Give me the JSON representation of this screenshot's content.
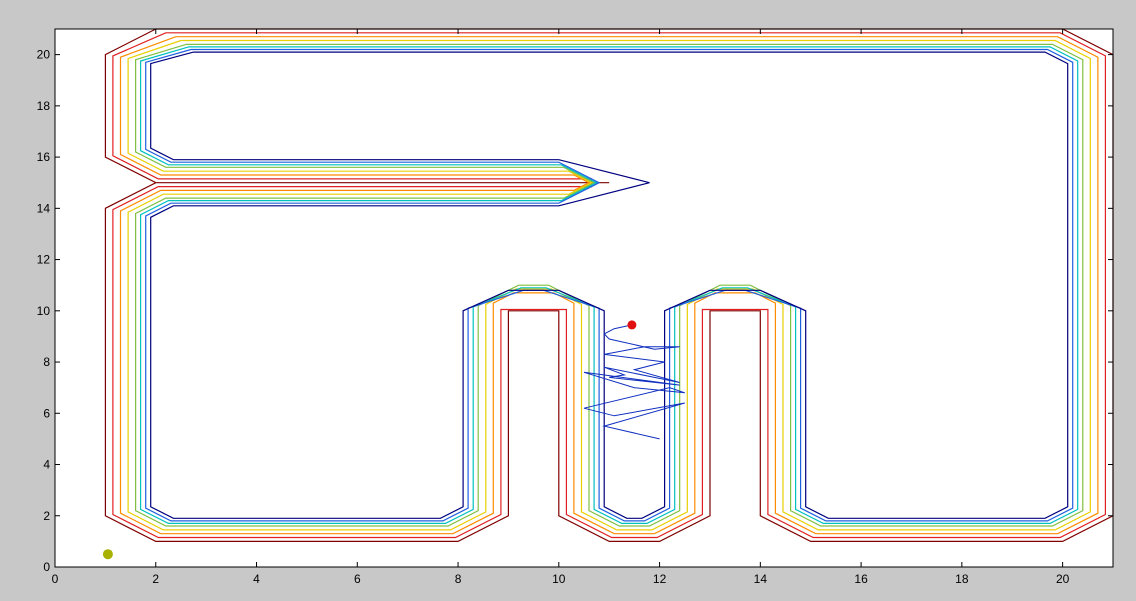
{
  "chart_data": {
    "type": "line",
    "title": "",
    "xlabel": "",
    "ylabel": "",
    "xlim": [
      0,
      21
    ],
    "ylim": [
      0,
      21
    ],
    "grid": false,
    "legend": "none",
    "xticks": [
      0,
      2,
      4,
      6,
      8,
      10,
      12,
      14,
      16,
      18,
      20
    ],
    "yticks": [
      0,
      2,
      4,
      6,
      8,
      10,
      12,
      14,
      16,
      18,
      20
    ],
    "xtick_labels": [
      "0",
      "2",
      "4",
      "6",
      "8",
      "10",
      "12",
      "14",
      "16",
      "18",
      "20"
    ],
    "ytick_labels": [
      "0",
      "2",
      "4",
      "6",
      "8",
      "10",
      "12",
      "14",
      "16",
      "18",
      "20"
    ],
    "contour_levels": [
      {
        "color": "#800000",
        "points": [
          [
            2,
            21
          ],
          [
            20,
            21
          ],
          [
            21,
            20
          ],
          [
            21,
            2
          ],
          [
            20,
            1
          ],
          [
            15,
            1
          ],
          [
            14,
            2
          ],
          [
            14,
            10
          ],
          [
            13,
            10
          ],
          [
            13,
            2
          ],
          [
            12,
            1
          ],
          [
            11,
            1
          ],
          [
            10,
            2
          ],
          [
            10,
            10
          ],
          [
            9,
            10
          ],
          [
            9,
            2
          ],
          [
            8,
            1
          ],
          [
            2,
            1
          ],
          [
            1,
            2
          ],
          [
            1,
            14
          ],
          [
            2,
            15
          ],
          [
            11,
            15
          ],
          [
            2,
            15
          ],
          [
            1,
            16
          ],
          [
            1,
            20
          ],
          [
            2,
            21
          ]
        ]
      },
      {
        "color": "#e02020",
        "points": [
          [
            2.2,
            20.85
          ],
          [
            19.95,
            20.85
          ],
          [
            20.85,
            19.95
          ],
          [
            20.85,
            2.05
          ],
          [
            19.95,
            1.15
          ],
          [
            15.05,
            1.15
          ],
          [
            14.15,
            2.05
          ],
          [
            14.15,
            10.05
          ],
          [
            12.85,
            10.05
          ],
          [
            12.85,
            2.05
          ],
          [
            11.95,
            1.15
          ],
          [
            11.05,
            1.15
          ],
          [
            10.15,
            2.05
          ],
          [
            10.15,
            10.05
          ],
          [
            8.85,
            10.05
          ],
          [
            8.85,
            2.05
          ],
          [
            7.95,
            1.15
          ],
          [
            2.05,
            1.15
          ],
          [
            1.15,
            2.05
          ],
          [
            1.15,
            13.95
          ],
          [
            2.05,
            14.85
          ],
          [
            10.65,
            14.85
          ],
          [
            10.65,
            15.15
          ],
          [
            2.05,
            15.15
          ],
          [
            1.15,
            16.05
          ],
          [
            1.15,
            19.95
          ],
          [
            2.2,
            20.85
          ]
        ]
      },
      {
        "color": "#ff8c00",
        "points": [
          [
            2.4,
            20.7
          ],
          [
            19.9,
            20.7
          ],
          [
            20.7,
            19.9
          ],
          [
            20.7,
            2.1
          ],
          [
            19.9,
            1.3
          ],
          [
            15.1,
            1.3
          ],
          [
            14.3,
            2.1
          ],
          [
            14.3,
            10.3
          ],
          [
            13.9,
            10.7
          ],
          [
            13.1,
            10.7
          ],
          [
            12.7,
            10.3
          ],
          [
            12.7,
            2.1
          ],
          [
            11.9,
            1.3
          ],
          [
            11.1,
            1.3
          ],
          [
            10.3,
            2.1
          ],
          [
            10.3,
            10.3
          ],
          [
            9.9,
            10.7
          ],
          [
            9.1,
            10.7
          ],
          [
            8.7,
            10.3
          ],
          [
            8.7,
            2.1
          ],
          [
            7.9,
            1.3
          ],
          [
            2.1,
            1.3
          ],
          [
            1.3,
            2.1
          ],
          [
            1.3,
            13.9
          ],
          [
            2.1,
            14.7
          ],
          [
            10.3,
            14.7
          ],
          [
            10.6,
            15
          ],
          [
            10.3,
            15.3
          ],
          [
            2.1,
            15.3
          ],
          [
            1.3,
            16.1
          ],
          [
            1.3,
            19.9
          ],
          [
            2.4,
            20.7
          ]
        ]
      },
      {
        "color": "#e8d000",
        "points": [
          [
            2.5,
            20.55
          ],
          [
            19.85,
            20.55
          ],
          [
            20.55,
            19.85
          ],
          [
            20.55,
            2.15
          ],
          [
            19.85,
            1.45
          ],
          [
            15.15,
            1.45
          ],
          [
            14.45,
            2.15
          ],
          [
            14.45,
            10.25
          ],
          [
            13.85,
            10.85
          ],
          [
            13.15,
            10.85
          ],
          [
            12.55,
            10.25
          ],
          [
            12.55,
            2.15
          ],
          [
            11.85,
            1.45
          ],
          [
            11.15,
            1.45
          ],
          [
            10.45,
            2.15
          ],
          [
            10.45,
            10.25
          ],
          [
            9.85,
            10.85
          ],
          [
            9.15,
            10.85
          ],
          [
            8.55,
            10.25
          ],
          [
            8.55,
            2.15
          ],
          [
            7.85,
            1.45
          ],
          [
            2.15,
            1.45
          ],
          [
            1.45,
            2.15
          ],
          [
            1.45,
            13.85
          ],
          [
            2.15,
            14.55
          ],
          [
            10.2,
            14.55
          ],
          [
            10.65,
            15
          ],
          [
            10.2,
            15.45
          ],
          [
            2.15,
            15.45
          ],
          [
            1.45,
            16.15
          ],
          [
            1.45,
            19.85
          ],
          [
            2.5,
            20.55
          ]
        ]
      },
      {
        "color": "#80c040",
        "points": [
          [
            2.6,
            20.4
          ],
          [
            19.8,
            20.4
          ],
          [
            20.4,
            19.8
          ],
          [
            20.4,
            2.2
          ],
          [
            19.8,
            1.6
          ],
          [
            15.2,
            1.6
          ],
          [
            14.6,
            2.2
          ],
          [
            14.6,
            10.2
          ],
          [
            13.8,
            11
          ],
          [
            13.2,
            11
          ],
          [
            12.4,
            10.2
          ],
          [
            12.4,
            2.2
          ],
          [
            11.8,
            1.6
          ],
          [
            11.2,
            1.6
          ],
          [
            10.6,
            2.2
          ],
          [
            10.6,
            10.2
          ],
          [
            9.8,
            11
          ],
          [
            9.2,
            11
          ],
          [
            8.4,
            10.2
          ],
          [
            8.4,
            2.2
          ],
          [
            7.8,
            1.6
          ],
          [
            2.2,
            1.6
          ],
          [
            1.6,
            2.2
          ],
          [
            1.6,
            13.8
          ],
          [
            2.2,
            14.4
          ],
          [
            10.1,
            14.4
          ],
          [
            10.7,
            15
          ],
          [
            10.1,
            15.6
          ],
          [
            2.2,
            15.6
          ],
          [
            1.6,
            16.2
          ],
          [
            1.6,
            19.8
          ],
          [
            2.6,
            20.4
          ]
        ]
      },
      {
        "color": "#00c0c0",
        "points": [
          [
            2.65,
            20.3
          ],
          [
            19.75,
            20.3
          ],
          [
            20.3,
            19.75
          ],
          [
            20.3,
            2.25
          ],
          [
            19.75,
            1.7
          ],
          [
            15.25,
            1.7
          ],
          [
            14.7,
            2.25
          ],
          [
            14.7,
            10.15
          ],
          [
            13.75,
            10.9
          ],
          [
            13.25,
            10.9
          ],
          [
            12.3,
            10.15
          ],
          [
            12.3,
            2.25
          ],
          [
            11.75,
            1.7
          ],
          [
            11.25,
            1.7
          ],
          [
            10.7,
            2.25
          ],
          [
            10.7,
            10.15
          ],
          [
            9.75,
            10.9
          ],
          [
            9.25,
            10.9
          ],
          [
            8.3,
            10.15
          ],
          [
            8.3,
            2.25
          ],
          [
            7.75,
            1.7
          ],
          [
            2.25,
            1.7
          ],
          [
            1.7,
            2.25
          ],
          [
            1.7,
            13.75
          ],
          [
            2.25,
            14.3
          ],
          [
            10.05,
            14.3
          ],
          [
            10.75,
            15
          ],
          [
            10.05,
            15.7
          ],
          [
            2.25,
            15.7
          ],
          [
            1.7,
            16.25
          ],
          [
            1.7,
            19.75
          ],
          [
            2.65,
            20.3
          ]
        ]
      },
      {
        "color": "#2060e0",
        "points": [
          [
            2.7,
            20.2
          ],
          [
            19.7,
            20.2
          ],
          [
            20.2,
            19.7
          ],
          [
            20.2,
            2.3
          ],
          [
            19.7,
            1.8
          ],
          [
            15.3,
            1.8
          ],
          [
            14.8,
            2.3
          ],
          [
            14.8,
            10.1
          ],
          [
            13.7,
            10.8
          ],
          [
            13.3,
            10.8
          ],
          [
            12.2,
            10.1
          ],
          [
            12.2,
            2.3
          ],
          [
            11.7,
            1.8
          ],
          [
            11.3,
            1.8
          ],
          [
            10.8,
            2.3
          ],
          [
            10.8,
            10.1
          ],
          [
            9.7,
            10.8
          ],
          [
            9.3,
            10.8
          ],
          [
            8.2,
            10.1
          ],
          [
            8.2,
            2.3
          ],
          [
            7.7,
            1.8
          ],
          [
            2.3,
            1.8
          ],
          [
            1.8,
            2.3
          ],
          [
            1.8,
            13.7
          ],
          [
            2.3,
            14.2
          ],
          [
            10,
            14.2
          ],
          [
            10.8,
            15
          ],
          [
            10,
            15.8
          ],
          [
            2.3,
            15.8
          ],
          [
            1.8,
            16.3
          ],
          [
            1.8,
            19.7
          ],
          [
            2.7,
            20.2
          ]
        ]
      },
      {
        "color": "#000080",
        "points": [
          [
            2.75,
            20.1
          ],
          [
            19.65,
            20.1
          ],
          [
            20.1,
            19.65
          ],
          [
            20.1,
            2.35
          ],
          [
            19.65,
            1.9
          ],
          [
            15.35,
            1.9
          ],
          [
            14.9,
            2.35
          ],
          [
            14.9,
            10
          ],
          [
            14,
            10.8
          ],
          [
            13,
            10.8
          ],
          [
            12.1,
            10
          ],
          [
            12.1,
            2.35
          ],
          [
            11.65,
            1.9
          ],
          [
            11.35,
            1.9
          ],
          [
            10.9,
            2.35
          ],
          [
            10.9,
            10
          ],
          [
            10,
            10.8
          ],
          [
            9,
            10.8
          ],
          [
            8.1,
            10
          ],
          [
            8.1,
            2.35
          ],
          [
            7.65,
            1.9
          ],
          [
            2.35,
            1.9
          ],
          [
            1.9,
            2.35
          ],
          [
            1.9,
            13.65
          ],
          [
            2.35,
            14.1
          ],
          [
            10,
            14.1
          ],
          [
            11.8,
            15
          ],
          [
            10,
            15.9
          ],
          [
            2.35,
            15.9
          ],
          [
            1.9,
            16.35
          ],
          [
            1.9,
            19.65
          ],
          [
            2.75,
            20.1
          ]
        ]
      }
    ],
    "path_series": {
      "color": "#1030c0",
      "points": [
        [
          12,
          5
        ],
        [
          10.9,
          5.5
        ],
        [
          12.5,
          6.4
        ],
        [
          11.1,
          5.9
        ],
        [
          10.5,
          6.2
        ],
        [
          12.2,
          7
        ],
        [
          12.5,
          6.8
        ],
        [
          11.5,
          7
        ],
        [
          10.5,
          7.6
        ],
        [
          12.4,
          7.1
        ],
        [
          11,
          7.4
        ],
        [
          11.3,
          7.5
        ],
        [
          10.9,
          7.8
        ],
        [
          12.4,
          7.2
        ],
        [
          11.5,
          7.7
        ],
        [
          12.1,
          8
        ],
        [
          10.9,
          8.3
        ],
        [
          11.7,
          8.6
        ],
        [
          12.4,
          8.6
        ],
        [
          11.9,
          8.5
        ],
        [
          11.0,
          8.9
        ],
        [
          10.9,
          9.1
        ],
        [
          11.1,
          9.3
        ],
        [
          11.45,
          9.45
        ]
      ]
    },
    "markers": [
      {
        "name": "goal",
        "x": 11.45,
        "y": 9.45,
        "color": "#e01010"
      },
      {
        "name": "start",
        "x": 1.05,
        "y": 0.5,
        "color": "#a8b000"
      }
    ]
  }
}
